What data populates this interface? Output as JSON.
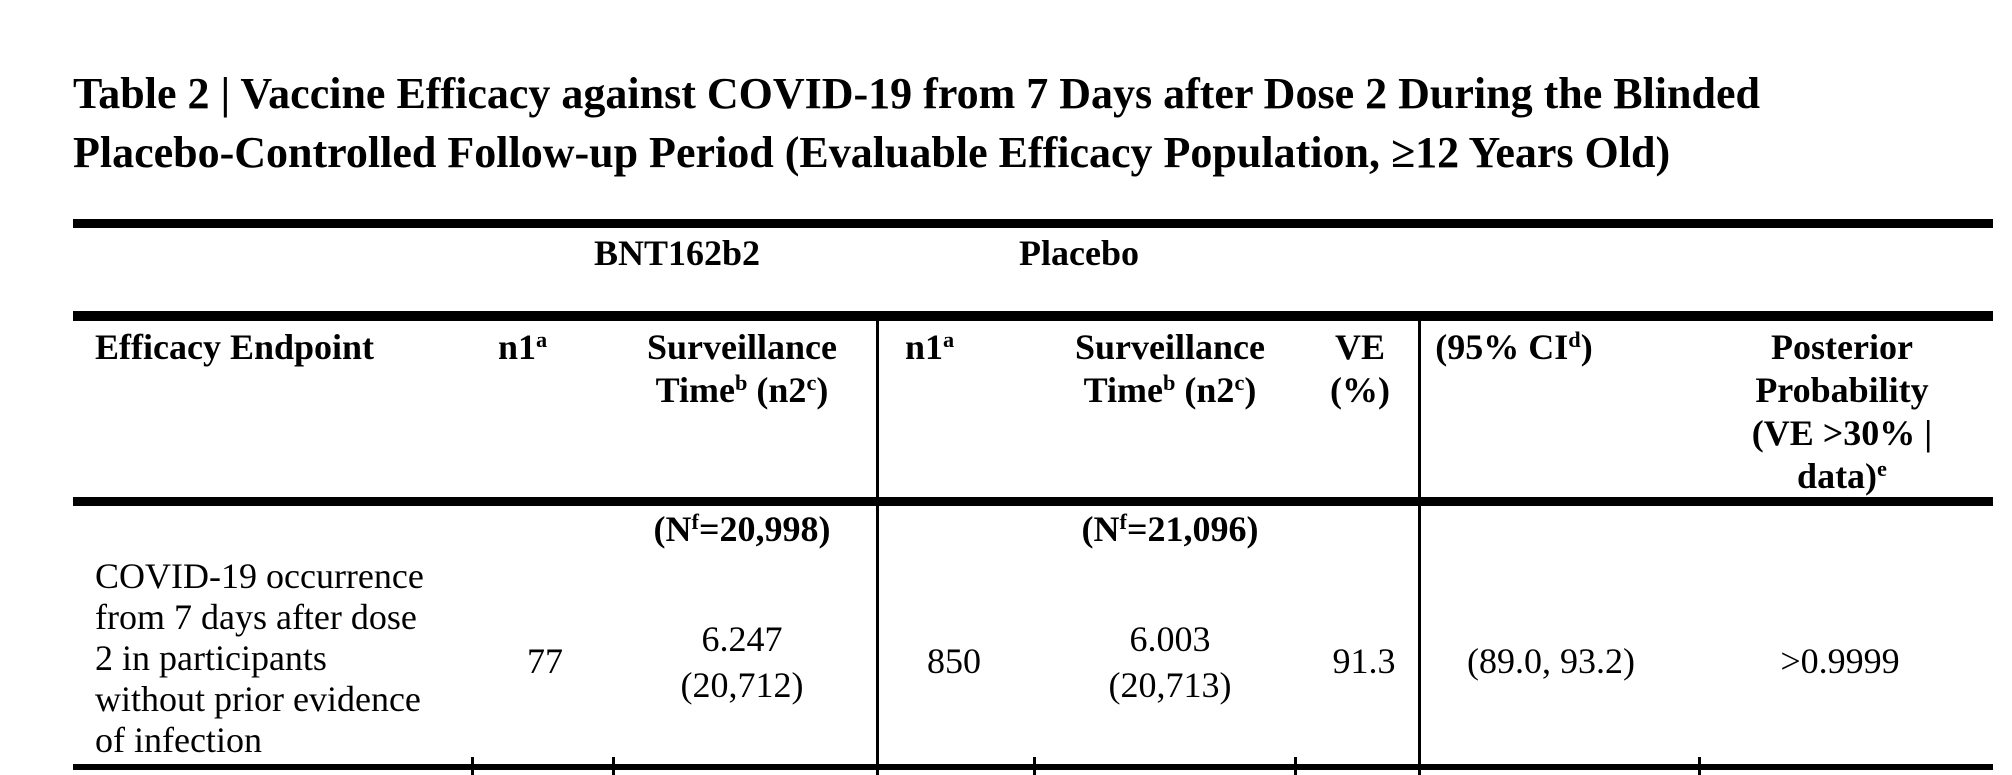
{
  "page": {
    "background": "#ffffff",
    "text_color": "#000000",
    "rule_color": "#000000"
  },
  "caption": {
    "line1": "Table 2 | Vaccine Efficacy against COVID-19 from 7 Days after Dose 2 During the Blinded",
    "line2": "Placebo-Controlled Follow-up Period (Evaluable Efficacy Population, ≥12 Years Old)"
  },
  "table": {
    "group_headers": {
      "vaccine": "BNT162b2",
      "placebo": "Placebo"
    },
    "headers": {
      "endpoint": "Efficacy Endpoint",
      "n1_vaccine": "n1^{a}",
      "surveillance_vaccine": {
        "line1": "Surveillance",
        "line2": "Time^{b} (n2^{c})"
      },
      "n1_placebo": "n1^{a}",
      "surveillance_placebo": {
        "line1": "Surveillance",
        "line2": "Time^{b} (n2^{c})"
      },
      "ve": {
        "line1": "VE",
        "line2": "(%)"
      },
      "ci": "(95% CI^{d})",
      "posterior": {
        "line1": "Posterior",
        "line2": "Probability",
        "line3": "(VE >30% |",
        "line4": "data)^{e}"
      }
    },
    "subheaders": {
      "vaccine_n": "(N^{f}=20,998)",
      "placebo_n": "(N^{f}=21,096)"
    },
    "row": {
      "endpoint_lines": [
        "COVID-19 occurrence",
        "from 7 days after dose",
        "2 in participants",
        "without prior evidence",
        "of infection"
      ],
      "n1_vaccine": "77",
      "surveillance_vaccine": {
        "line1": "6.247",
        "line2": "(20,712)"
      },
      "n1_placebo": "850",
      "surveillance_placebo": {
        "line1": "6.003",
        "line2": "(20,713)"
      },
      "ve": "91.3",
      "ci": "(89.0, 93.2)",
      "posterior": ">0.9999"
    }
  }
}
